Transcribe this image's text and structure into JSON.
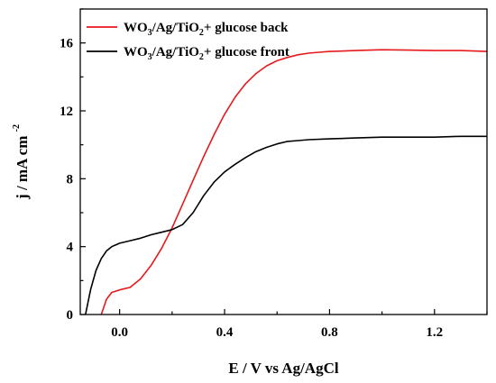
{
  "chart_data": {
    "type": "line",
    "xlabel": "E / V vs Ag/AgCl",
    "ylabel": {
      "main": "j / mA cm",
      "sup": "-2"
    },
    "xlim": [
      -0.15,
      1.4
    ],
    "ylim": [
      0,
      18
    ],
    "xticks": [
      "0.0",
      "0.4",
      "0.8",
      "1.2"
    ],
    "xtick_values": [
      0.0,
      0.4,
      0.8,
      1.2
    ],
    "yticks": [
      "0",
      "4",
      "8",
      "12",
      "16"
    ],
    "ytick_values": [
      0,
      4,
      8,
      12,
      16
    ],
    "grid": false,
    "legend": "top-left",
    "series": [
      {
        "name": "WO3/Ag/TiO2+ glucose back",
        "legend_parts": [
          "WO",
          "3",
          "/Ag/TiO",
          "2",
          "+ glucose back"
        ],
        "color": "#e8191d",
        "x": [
          -0.07,
          -0.05,
          -0.03,
          0.0,
          0.04,
          0.08,
          0.12,
          0.16,
          0.2,
          0.24,
          0.28,
          0.32,
          0.36,
          0.4,
          0.44,
          0.48,
          0.52,
          0.56,
          0.6,
          0.64,
          0.68,
          0.72,
          0.76,
          0.8,
          0.9,
          1.0,
          1.1,
          1.2,
          1.3,
          1.4
        ],
        "y": [
          0.0,
          0.9,
          1.3,
          1.45,
          1.6,
          2.1,
          2.9,
          3.9,
          5.1,
          6.5,
          7.9,
          9.3,
          10.6,
          11.8,
          12.8,
          13.6,
          14.2,
          14.65,
          14.95,
          15.15,
          15.3,
          15.4,
          15.45,
          15.5,
          15.55,
          15.6,
          15.58,
          15.55,
          15.55,
          15.5
        ]
      },
      {
        "name": "WO3/Ag/TiO2+ glucose front",
        "legend_parts": [
          "WO",
          "3",
          "/Ag/TiO",
          "2",
          "+ glucose front"
        ],
        "color": "#000000",
        "x": [
          -0.13,
          -0.11,
          -0.09,
          -0.07,
          -0.05,
          -0.03,
          0.0,
          0.04,
          0.08,
          0.12,
          0.16,
          0.2,
          0.24,
          0.28,
          0.32,
          0.36,
          0.4,
          0.44,
          0.48,
          0.52,
          0.56,
          0.6,
          0.64,
          0.68,
          0.72,
          0.8,
          0.9,
          1.0,
          1.1,
          1.2,
          1.3,
          1.4
        ],
        "y": [
          0.0,
          1.5,
          2.6,
          3.3,
          3.75,
          4.0,
          4.2,
          4.35,
          4.5,
          4.7,
          4.85,
          5.0,
          5.3,
          6.0,
          7.0,
          7.8,
          8.4,
          8.85,
          9.25,
          9.6,
          9.85,
          10.05,
          10.2,
          10.25,
          10.3,
          10.35,
          10.4,
          10.45,
          10.45,
          10.45,
          10.5,
          10.5
        ]
      }
    ]
  }
}
